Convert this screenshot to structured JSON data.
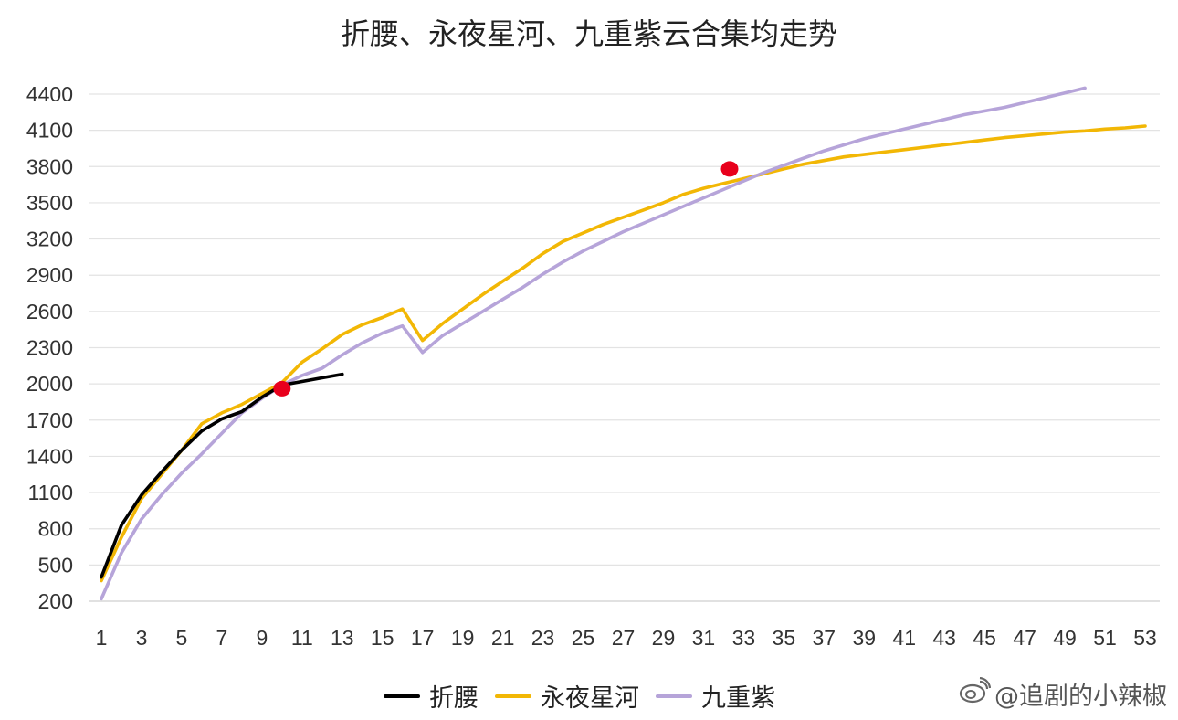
{
  "chart_data": {
    "type": "line",
    "title": "折腰、永夜星河、九重紫云合集均走势",
    "x_ticks": [
      1,
      3,
      5,
      7,
      9,
      11,
      13,
      15,
      17,
      19,
      21,
      23,
      25,
      27,
      29,
      31,
      33,
      35,
      37,
      39,
      41,
      43,
      45,
      47,
      49,
      51,
      53
    ],
    "y_ticks": [
      200,
      500,
      800,
      1100,
      1400,
      1700,
      2000,
      2300,
      2600,
      2900,
      3200,
      3500,
      3800,
      4100,
      4400
    ],
    "xlim": [
      1,
      53
    ],
    "ylim": [
      200,
      4400
    ],
    "grid": true,
    "legend_position": "bottom",
    "series": [
      {
        "name": "折腰",
        "color": "#000000",
        "x": [
          1,
          2,
          3,
          4,
          5,
          6,
          7,
          8,
          9,
          10,
          11,
          12,
          13
        ],
        "values": [
          400,
          830,
          1080,
          1270,
          1450,
          1610,
          1710,
          1770,
          1890,
          1990,
          2020,
          2050,
          2080
        ]
      },
      {
        "name": "永夜星河",
        "color": "#F2B705",
        "x": [
          1,
          2,
          3,
          4,
          5,
          6,
          7,
          8,
          9,
          10,
          11,
          12,
          13,
          14,
          15,
          16,
          17,
          18,
          19,
          20,
          21,
          22,
          23,
          24,
          25,
          26,
          27,
          28,
          29,
          30,
          31,
          32,
          33,
          34,
          35,
          36,
          37,
          38,
          39,
          40,
          41,
          42,
          43,
          44,
          45,
          46,
          47,
          48,
          49,
          50,
          51,
          52,
          53
        ],
        "values": [
          370,
          730,
          1050,
          1250,
          1450,
          1670,
          1760,
          1830,
          1920,
          2010,
          2180,
          2290,
          2410,
          2490,
          2550,
          2620,
          2360,
          2500,
          2620,
          2740,
          2850,
          2960,
          3080,
          3180,
          3250,
          3320,
          3380,
          3440,
          3500,
          3570,
          3620,
          3660,
          3700,
          3740,
          3780,
          3820,
          3850,
          3880,
          3900,
          3920,
          3940,
          3960,
          3980,
          4000,
          4020,
          4040,
          4055,
          4070,
          4085,
          4095,
          4110,
          4120,
          4135
        ]
      },
      {
        "name": "九重紫",
        "color": "#B6A4D9",
        "x": [
          1,
          2,
          3,
          4,
          5,
          6,
          7,
          8,
          9,
          10,
          11,
          12,
          13,
          14,
          15,
          16,
          17,
          18,
          19,
          20,
          21,
          22,
          23,
          24,
          25,
          26,
          27,
          28,
          29,
          30,
          31,
          32,
          33,
          34,
          35,
          36,
          37,
          38,
          39,
          40,
          41,
          42,
          43,
          44,
          45,
          46,
          47,
          48,
          49,
          50
        ],
        "values": [
          220,
          600,
          880,
          1080,
          1260,
          1420,
          1590,
          1760,
          1880,
          1990,
          2070,
          2130,
          2240,
          2340,
          2420,
          2480,
          2260,
          2400,
          2500,
          2600,
          2700,
          2800,
          2910,
          3010,
          3100,
          3180,
          3260,
          3330,
          3400,
          3470,
          3540,
          3610,
          3680,
          3750,
          3810,
          3870,
          3930,
          3980,
          4030,
          4070,
          4110,
          4150,
          4190,
          4230,
          4260,
          4290,
          4330,
          4370,
          4410,
          4450
        ]
      }
    ],
    "annotations": [
      {
        "type": "red-dot",
        "x": 10,
        "y": 1960
      },
      {
        "type": "red-dot",
        "x": 32.3,
        "y": 3780
      }
    ]
  },
  "watermark": "@追剧的小辣椒"
}
